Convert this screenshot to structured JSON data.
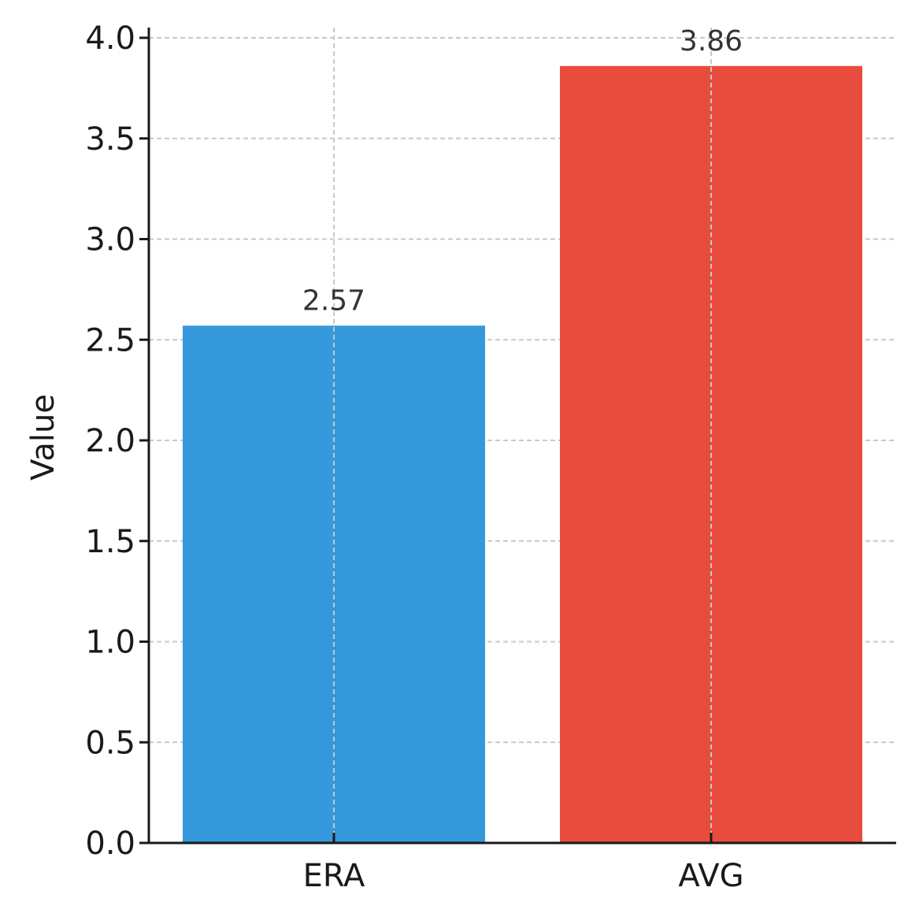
{
  "chart_data": {
    "type": "bar",
    "title": "",
    "xlabel": "",
    "ylabel": "Value",
    "categories": [
      "ERA",
      "AVG"
    ],
    "values": [
      2.57,
      3.86
    ],
    "value_labels": [
      "2.57",
      "3.86"
    ],
    "colors": [
      "#3598db",
      "#e74c3c"
    ],
    "ylim": [
      0,
      4.0
    ],
    "yticks": [
      0.0,
      0.5,
      1.0,
      1.5,
      2.0,
      2.5,
      3.0,
      3.5,
      4.0
    ],
    "ytick_labels": [
      "0.0",
      "0.5",
      "1.0",
      "1.5",
      "2.0",
      "2.5",
      "3.0",
      "3.5",
      "4.0"
    ],
    "grid": true,
    "legend": "none"
  }
}
